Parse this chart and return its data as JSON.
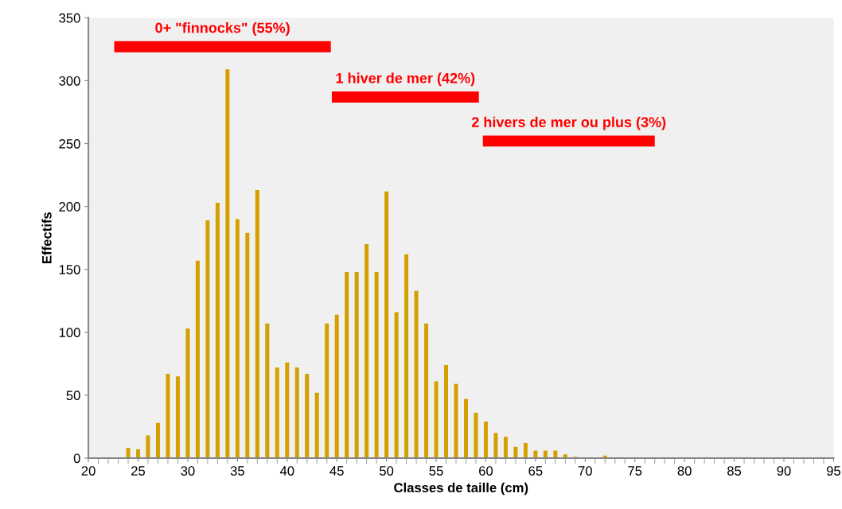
{
  "chart_data": {
    "type": "bar",
    "xlabel": "Classes de taille (cm)",
    "ylabel": "Effectifs",
    "xlim": [
      20,
      95
    ],
    "xticks": [
      20,
      25,
      30,
      35,
      40,
      45,
      50,
      55,
      60,
      65,
      70,
      75,
      80,
      85,
      90,
      95
    ],
    "ylim": [
      0,
      350
    ],
    "yticks": [
      0,
      50,
      100,
      150,
      200,
      250,
      300,
      350
    ],
    "grid": false,
    "legend": false,
    "series": [
      {
        "color": "#d4a000",
        "x": [
          24,
          25,
          26,
          27,
          28,
          29,
          30,
          31,
          32,
          33,
          34,
          35,
          36,
          37,
          38,
          39,
          40,
          41,
          42,
          43,
          44,
          45,
          46,
          47,
          48,
          49,
          50,
          51,
          52,
          53,
          54,
          55,
          56,
          57,
          58,
          59,
          60,
          61,
          62,
          63,
          64,
          65,
          66,
          67,
          68,
          69,
          70,
          71,
          72
        ],
        "values": [
          8,
          7,
          18,
          28,
          67,
          65,
          103,
          157,
          189,
          203,
          309,
          190,
          179,
          213,
          107,
          72,
          76,
          72,
          67,
          52,
          107,
          114,
          148,
          148,
          170,
          148,
          212,
          116,
          162,
          133,
          107,
          61,
          74,
          59,
          47,
          36,
          29,
          20,
          17,
          9,
          12,
          6,
          6,
          6,
          3,
          1,
          0,
          0,
          2
        ]
      },
      {
        "type": "line",
        "name": "0+ \"finnocks\" (55%)",
        "color": "#ff0000",
        "x": [
          22.6,
          44.4
        ],
        "values": [
          327,
          327
        ]
      },
      {
        "type": "line",
        "name": "1 hiver de mer (42%)",
        "color": "#ff0000",
        "x": [
          44.5,
          59.3
        ],
        "values": [
          287,
          287
        ]
      },
      {
        "type": "line",
        "name": "2 hivers de mer ou plus (3%)",
        "color": "#ff0000",
        "x": [
          59.7,
          77
        ],
        "values": [
          252,
          252
        ]
      }
    ]
  }
}
